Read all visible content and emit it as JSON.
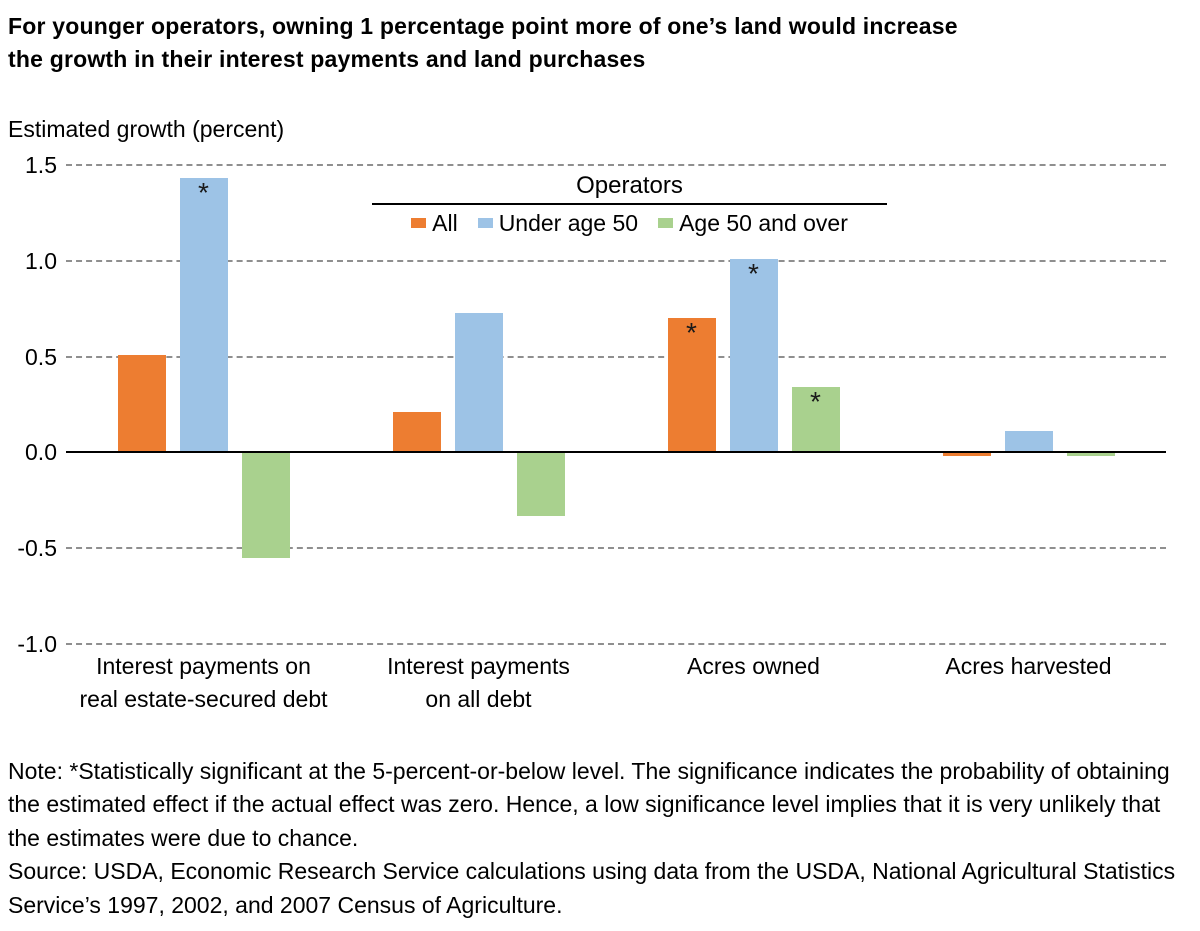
{
  "title": {
    "line1": "For younger operators, owning 1 percentage point more of one’s land would increase",
    "line2": "the growth in their interest payments and land purchases"
  },
  "legend": {
    "title": "Operators",
    "items": [
      {
        "label": "All",
        "color": "#ED7D31"
      },
      {
        "label": "Under age 50",
        "color": "#9DC3E6"
      },
      {
        "label": "Age 50 and over",
        "color": "#A9D18E"
      }
    ]
  },
  "chart_data": {
    "type": "bar",
    "ylabel": "Estimated growth (percent)",
    "categories": [
      "Interest payments on\nreal estate-secured debt",
      "Interest payments\non all debt",
      "Acres owned",
      "Acres harvested"
    ],
    "series": [
      {
        "name": "All",
        "color": "#ED7D31",
        "values": [
          0.51,
          0.21,
          0.7,
          -0.02
        ],
        "significant": [
          false,
          false,
          true,
          false
        ]
      },
      {
        "name": "Under age 50",
        "color": "#9DC3E6",
        "values": [
          1.43,
          0.73,
          1.01,
          0.11
        ],
        "significant": [
          true,
          false,
          true,
          false
        ]
      },
      {
        "name": "Age 50 and over",
        "color": "#A9D18E",
        "values": [
          -0.55,
          -0.33,
          0.34,
          -0.02
        ],
        "significant": [
          false,
          false,
          true,
          false
        ]
      }
    ],
    "y_ticks": [
      "1.5",
      "1.0",
      "0.5",
      "0.0",
      "-0.5",
      "-1.0"
    ],
    "ylim": [
      -1.0,
      1.5
    ],
    "grid": "horizontal dashed gray, solid black zero axis",
    "legend_position": "top center inside plot",
    "significance_marker": "*"
  },
  "note": "Note: *Statistically significant at the 5-percent-or-below level. The significance indicates the probability of obtaining the estimated effect if the actual effect was zero. Hence, a low significance level implies that it is very unlikely that the estimates were due to chance.",
  "source": "Source: USDA, Economic Research Service calculations using data from the USDA, National Agricultural Statistics Service’s 1997, 2002, and 2007 Census of Agriculture."
}
